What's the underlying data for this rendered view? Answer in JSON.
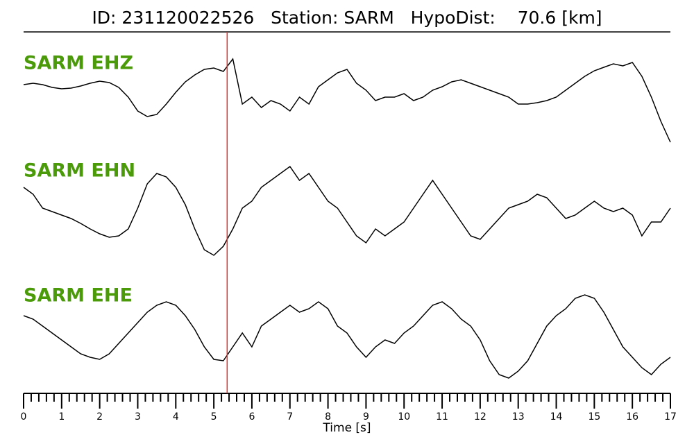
{
  "chart_data": {
    "type": "line",
    "title": "ID: 231120022526   Station: SARM   HypoDist:    70.6 [km]",
    "xlabel": "Time [s]",
    "xlim": [
      0,
      17
    ],
    "xticks": [
      0,
      1,
      2,
      3,
      4,
      5,
      6,
      7,
      8,
      9,
      10,
      11,
      12,
      13,
      14,
      15,
      16,
      17
    ],
    "xminorticks": [
      0.2,
      0.4,
      0.6,
      0.8,
      1.2,
      1.4,
      1.6,
      1.8,
      2.2,
      2.4,
      2.6,
      2.8,
      3.2,
      3.4,
      3.6,
      3.8,
      4.2,
      4.4,
      4.6,
      4.8,
      5.2,
      5.4,
      5.6,
      5.8,
      6.2,
      6.4,
      6.6,
      6.8,
      7.2,
      7.4,
      7.6,
      7.8,
      8.2,
      8.4,
      8.6,
      8.8,
      9.2,
      9.4,
      9.6,
      9.8,
      10.2,
      10.4,
      10.6,
      10.8,
      11.2,
      11.4,
      11.6,
      11.8,
      12.2,
      12.4,
      12.6,
      12.8,
      13.2,
      13.4,
      13.6,
      13.8,
      14.2,
      14.4,
      14.6,
      14.8,
      15.2,
      15.4,
      15.6,
      15.8,
      16.2,
      16.4,
      16.6,
      16.8
    ],
    "ylim": [
      -75,
      75
    ],
    "pick_time": 5.35,
    "pick_color": "#e8302a",
    "label_color": "#4a9a0a",
    "x": [
      0,
      0.25,
      0.5,
      0.75,
      1,
      1.25,
      1.5,
      1.75,
      2,
      2.25,
      2.5,
      2.75,
      3,
      3.25,
      3.5,
      3.75,
      4,
      4.25,
      4.5,
      4.75,
      5,
      5.25,
      5.5,
      5.75,
      6,
      6.25,
      6.5,
      6.75,
      7,
      7.25,
      7.5,
      7.75,
      8,
      8.25,
      8.5,
      8.75,
      9,
      9.25,
      9.5,
      9.75,
      10,
      10.25,
      10.5,
      10.75,
      11,
      11.25,
      11.5,
      11.75,
      12,
      12.25,
      12.5,
      12.75,
      13,
      13.25,
      13.5,
      13.75,
      14,
      14.25,
      14.5,
      14.75,
      15,
      15.25,
      15.5,
      15.75,
      16,
      16.25,
      16.5,
      16.75,
      17
    ],
    "series": [
      {
        "name": "SARM EHZ",
        "color": "#000000",
        "values": [
          23,
          25,
          23,
          19,
          17,
          18,
          21,
          25,
          28,
          26,
          19,
          5,
          -15,
          -23,
          -20,
          -5,
          12,
          27,
          37,
          45,
          47,
          42,
          60,
          -5,
          5,
          -10,
          0,
          -5,
          -15,
          5,
          -5,
          20,
          30,
          40,
          45,
          25,
          15,
          0,
          5,
          5,
          10,
          0,
          5,
          15,
          20,
          27,
          30,
          25,
          20,
          15,
          10,
          5,
          -5,
          -5,
          -3,
          0,
          5,
          15,
          25,
          35,
          43,
          48,
          53,
          50,
          55,
          35,
          5,
          -30,
          -60
        ]
      },
      {
        "name": "SARM EHN",
        "color": "#000000",
        "values": [
          30,
          20,
          0,
          -5,
          -10,
          -15,
          -22,
          -30,
          -37,
          -42,
          -40,
          -30,
          0,
          35,
          50,
          45,
          30,
          5,
          -30,
          -60,
          -68,
          -55,
          -30,
          0,
          10,
          30,
          40,
          50,
          60,
          40,
          50,
          30,
          10,
          0,
          -20,
          -40,
          -50,
          -30,
          -40,
          -30,
          -20,
          0,
          20,
          40,
          20,
          0,
          -20,
          -40,
          -45,
          -30,
          -15,
          0,
          5,
          10,
          20,
          15,
          0,
          -15,
          -10,
          0,
          10,
          0,
          -5,
          0,
          -10,
          -40,
          -20,
          -20,
          0
        ]
      },
      {
        "name": "SARM EHE",
        "color": "#000000",
        "values": [
          25,
          20,
          10,
          0,
          -10,
          -20,
          -30,
          -35,
          -38,
          -30,
          -15,
          0,
          15,
          30,
          40,
          45,
          40,
          25,
          5,
          -20,
          -38,
          -40,
          -20,
          0,
          -20,
          10,
          20,
          30,
          40,
          30,
          35,
          45,
          35,
          10,
          0,
          -20,
          -35,
          -20,
          -10,
          -15,
          0,
          10,
          25,
          40,
          45,
          35,
          20,
          10,
          -10,
          -40,
          -60,
          -65,
          -55,
          -40,
          -15,
          10,
          25,
          35,
          50,
          55,
          50,
          30,
          5,
          -20,
          -35,
          -50,
          -60,
          -45,
          -35
        ]
      }
    ]
  }
}
